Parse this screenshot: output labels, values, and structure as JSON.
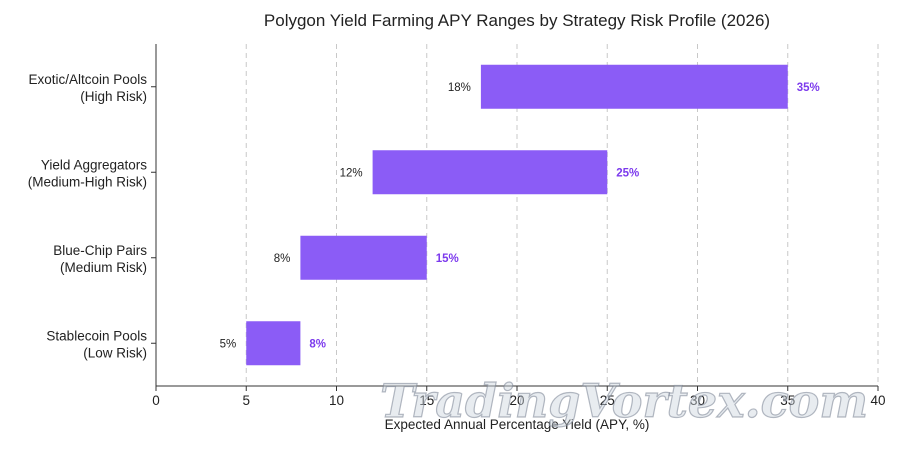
{
  "chart_data": {
    "type": "bar",
    "orientation": "horizontal-floating",
    "title": "Polygon Yield Farming APY Ranges by Strategy Risk Profile (2026)",
    "xlabel": "Expected Annual Percentage Yield (APY, %)",
    "ylabel": "",
    "xlim": [
      0,
      40
    ],
    "xticks": [
      0,
      5,
      10,
      15,
      20,
      25,
      30,
      35,
      40
    ],
    "grid": "vertical dashed",
    "bar_color": "#8b5cf6",
    "label_color": "#7c3aed",
    "categories": [
      [
        "Exotic/Altcoin Pools",
        "(High Risk)"
      ],
      [
        "Yield Aggregators",
        "(Medium-High Risk)"
      ],
      [
        "Blue-Chip Pairs",
        "(Medium Risk)"
      ],
      [
        "Stablecoin Pools",
        "(Low Risk)"
      ]
    ],
    "low": [
      18,
      12,
      8,
      5
    ],
    "high": [
      35,
      25,
      15,
      8
    ],
    "low_labels": [
      "18%",
      "12%",
      "8%",
      "5%"
    ],
    "high_labels": [
      "35%",
      "25%",
      "15%",
      "8%"
    ]
  },
  "watermark": "TradingVortex.com"
}
